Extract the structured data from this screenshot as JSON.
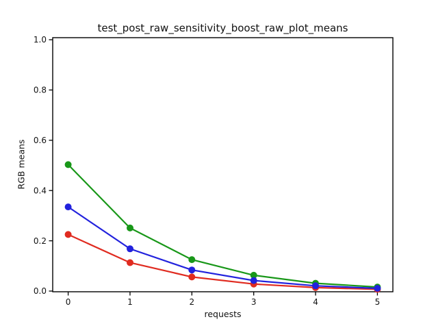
{
  "figure": {
    "title": "test_post_raw_sensitivity_boost_raw_plot_means",
    "xlabel": "requests",
    "ylabel": "RGB means"
  },
  "chart_data": {
    "type": "line",
    "title": "test_post_raw_sensitivity_boost_raw_plot_means",
    "xlabel": "requests",
    "ylabel": "RGB means",
    "x": [
      0,
      1,
      2,
      3,
      4,
      5
    ],
    "series": [
      {
        "name": "red",
        "color": "#e02b20",
        "values": [
          0.225,
          0.113,
          0.056,
          0.028,
          0.014,
          0.007
        ]
      },
      {
        "name": "green",
        "color": "#189718",
        "values": [
          0.503,
          0.251,
          0.125,
          0.063,
          0.031,
          0.016
        ]
      },
      {
        "name": "blue",
        "color": "#2222dd",
        "values": [
          0.335,
          0.168,
          0.084,
          0.042,
          0.021,
          0.011
        ]
      }
    ],
    "xticks": [
      0,
      1,
      2,
      3,
      4,
      5
    ],
    "yticks": [
      0.0,
      0.2,
      0.4,
      0.6,
      0.8,
      1.0
    ],
    "xlim": [
      -0.25,
      5.25
    ],
    "ylim": [
      0,
      1.0
    ],
    "grid": false,
    "legend": false,
    "marker": "circle",
    "marker_size": 5,
    "line_width": 2.2,
    "spine_color": "#000000",
    "text_color": "#111111"
  }
}
